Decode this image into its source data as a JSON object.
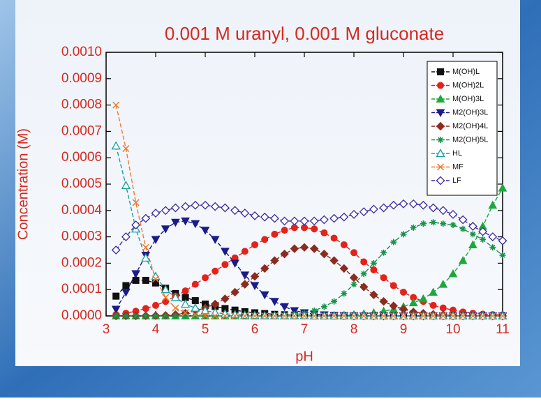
{
  "chart_data": {
    "type": "line",
    "title": "0.001 M uranyl, 0.001 M gluconate",
    "x_label": "pH",
    "y_label": "Concentration (M)",
    "xlim": [
      3,
      11
    ],
    "ylim": [
      0,
      0.001
    ],
    "xticks": [
      3,
      4,
      5,
      6,
      7,
      8,
      9,
      10,
      11
    ],
    "yticks": [
      {
        "value": 0,
        "label": "0.0000"
      },
      {
        "value": 0.0001,
        "label": "0.0001"
      },
      {
        "value": 0.0002,
        "label": "0.0002"
      },
      {
        "value": 0.0003,
        "label": "0.0003"
      },
      {
        "value": 0.0004,
        "label": "0.0004"
      },
      {
        "value": 0.0005,
        "label": "0.0005"
      },
      {
        "value": 0.0006,
        "label": "0.0006"
      },
      {
        "value": 0.0007,
        "label": "0.0007"
      },
      {
        "value": 0.0008,
        "label": "0.0008"
      },
      {
        "value": 0.0009,
        "label": "0.0009"
      },
      {
        "value": 0.001,
        "label": "0.0010"
      }
    ],
    "legend_position": "upper right",
    "dashed": true,
    "x": [
      3.2,
      3.4,
      3.6,
      3.8,
      4.0,
      4.2,
      4.4,
      4.6,
      4.8,
      5.0,
      5.2,
      5.4,
      5.6,
      5.8,
      6.0,
      6.2,
      6.4,
      6.6,
      6.8,
      7.0,
      7.2,
      7.4,
      7.6,
      7.8,
      8.0,
      8.2,
      8.4,
      8.6,
      8.8,
      9.0,
      9.2,
      9.4,
      9.6,
      9.8,
      10.0,
      10.2,
      10.4,
      10.6,
      10.8,
      11.0
    ],
    "series": [
      {
        "name": "M(OH)L",
        "color": "#111111",
        "marker": "square",
        "values": [
          7.5e-05,
          0.000115,
          0.000135,
          0.000135,
          0.000125,
          0.000105,
          8.5e-05,
          7e-05,
          5.8e-05,
          4.5e-05,
          3.6e-05,
          2.8e-05,
          2.2e-05,
          1.6e-05,
          1.2e-05,
          9e-06,
          6e-06,
          4.5e-06,
          3e-06,
          2e-06,
          1.5e-06,
          1e-06,
          1e-06,
          5e-07,
          5e-07,
          0,
          0,
          0,
          0,
          0,
          0,
          0,
          0,
          0,
          0,
          0,
          0,
          0,
          0,
          0
        ]
      },
      {
        "name": "M(OH)2L",
        "color": "#e3231b",
        "marker": "circle",
        "values": [
          5e-06,
          1e-05,
          1.8e-05,
          2.8e-05,
          4e-05,
          5.5e-05,
          7.5e-05,
          9.5e-05,
          0.00012,
          0.000145,
          0.00017,
          0.000195,
          0.00022,
          0.000245,
          0.00027,
          0.00029,
          0.00031,
          0.000325,
          0.000335,
          0.000335,
          0.00033,
          0.000315,
          0.000295,
          0.00027,
          0.00024,
          0.000205,
          0.000175,
          0.000145,
          0.000115,
          9e-05,
          7e-05,
          5.5e-05,
          4e-05,
          3e-05,
          2.2e-05,
          1.5e-05,
          1e-05,
          7e-06,
          5e-06,
          4e-06
        ]
      },
      {
        "name": "M(OH)3L",
        "color": "#1ea83c",
        "marker": "triangle",
        "values": [
          0,
          0,
          0,
          0,
          0,
          0,
          0,
          0,
          0,
          0,
          0,
          0,
          0,
          0,
          0,
          0,
          0,
          0,
          0,
          5e-07,
          1e-06,
          1.5e-06,
          2e-06,
          3e-06,
          5e-06,
          8e-06,
          1.2e-05,
          1.8e-05,
          2.5e-05,
          3.5e-05,
          5e-05,
          6.5e-05,
          9e-05,
          0.00012,
          0.00016,
          0.00021,
          0.00027,
          0.00034,
          0.00042,
          0.000485
        ]
      },
      {
        "name": "M2(OH)3L",
        "color": "#1b1b8a",
        "marker": "triangle-down",
        "values": [
          2.5e-05,
          9e-05,
          0.00016,
          0.00023,
          0.00029,
          0.00033,
          0.000355,
          0.00036,
          0.00035,
          0.000325,
          0.00029,
          0.000245,
          0.0002,
          0.000155,
          0.000115,
          8e-05,
          5.5e-05,
          3.5e-05,
          2e-05,
          1.2e-05,
          7e-06,
          4e-06,
          2e-06,
          1e-06,
          0,
          0,
          0,
          0,
          0,
          0,
          0,
          0,
          0,
          0,
          0,
          0,
          0,
          0,
          0,
          0
        ]
      },
      {
        "name": "M2(OH)4L",
        "color": "#8c2b1f",
        "marker": "diamond",
        "values": [
          0,
          0,
          0,
          5e-07,
          1e-06,
          2e-06,
          5e-06,
          1e-05,
          2e-05,
          3e-05,
          4.5e-05,
          6.5e-05,
          9e-05,
          0.00012,
          0.00015,
          0.00018,
          0.00021,
          0.000235,
          0.000255,
          0.00026,
          0.000255,
          0.000235,
          0.00021,
          0.00018,
          0.000145,
          0.00011,
          8e-05,
          5.5e-05,
          3.8e-05,
          2.5e-05,
          1.5e-05,
          1e-05,
          6e-06,
          4e-06,
          2e-06,
          1e-06,
          1e-06,
          5e-07,
          5e-07,
          0
        ]
      },
      {
        "name": "M2(OH)5L",
        "color": "#17934a",
        "marker": "star",
        "values": [
          0,
          0,
          0,
          0,
          0,
          0,
          0,
          0,
          0,
          0,
          0,
          0,
          0,
          0,
          0,
          0,
          0,
          2e-06,
          5e-06,
          1e-05,
          2e-05,
          3.5e-05,
          5.5e-05,
          8.5e-05,
          0.00012,
          0.00016,
          0.0002,
          0.00024,
          0.00028,
          0.00031,
          0.000335,
          0.00035,
          0.000355,
          0.00035,
          0.000345,
          0.00033,
          0.00031,
          0.00029,
          0.00026,
          0.00023
        ]
      },
      {
        "name": "HL",
        "color": "#17a0a0",
        "marker": "triangle-open",
        "values": [
          0.000645,
          0.000495,
          0.00033,
          0.00022,
          0.00015,
          0.0001,
          7e-05,
          4.5e-05,
          3e-05,
          2e-05,
          1.3e-05,
          8e-06,
          5e-06,
          3e-06,
          2e-06,
          1e-06,
          1e-06,
          1e-06,
          1e-06,
          1e-06,
          0,
          0,
          0,
          0,
          0,
          0,
          0,
          0,
          0,
          0,
          0,
          0,
          0,
          0,
          0,
          0,
          0,
          0,
          0,
          0
        ]
      },
      {
        "name": "MF",
        "color": "#f07a2e",
        "marker": "x",
        "values": [
          0.0008,
          0.000635,
          0.00043,
          0.00026,
          0.00014,
          7e-05,
          3e-05,
          1.2e-05,
          5e-06,
          2e-06,
          0,
          0,
          0,
          0,
          0,
          0,
          0,
          0,
          0,
          0,
          0,
          0,
          0,
          0,
          0,
          0,
          0,
          0,
          0,
          0,
          0,
          0,
          0,
          0,
          0,
          0,
          0,
          0,
          0,
          0
        ]
      },
      {
        "name": "LF",
        "color": "#3a2aa2",
        "marker": "diamond-open",
        "values": [
          0.00025,
          0.0003,
          0.000345,
          0.00037,
          0.00039,
          0.0004,
          0.00041,
          0.000415,
          0.00042,
          0.00042,
          0.000415,
          0.00041,
          0.0004,
          0.00039,
          0.00038,
          0.000375,
          0.00037,
          0.00036,
          0.00036,
          0.00036,
          0.00036,
          0.000365,
          0.00037,
          0.000375,
          0.000385,
          0.000395,
          0.000405,
          0.00041,
          0.00042,
          0.000425,
          0.000425,
          0.00042,
          0.00041,
          0.0004,
          0.000385,
          0.000365,
          0.00034,
          0.00032,
          0.0003,
          0.000285
        ]
      }
    ]
  }
}
